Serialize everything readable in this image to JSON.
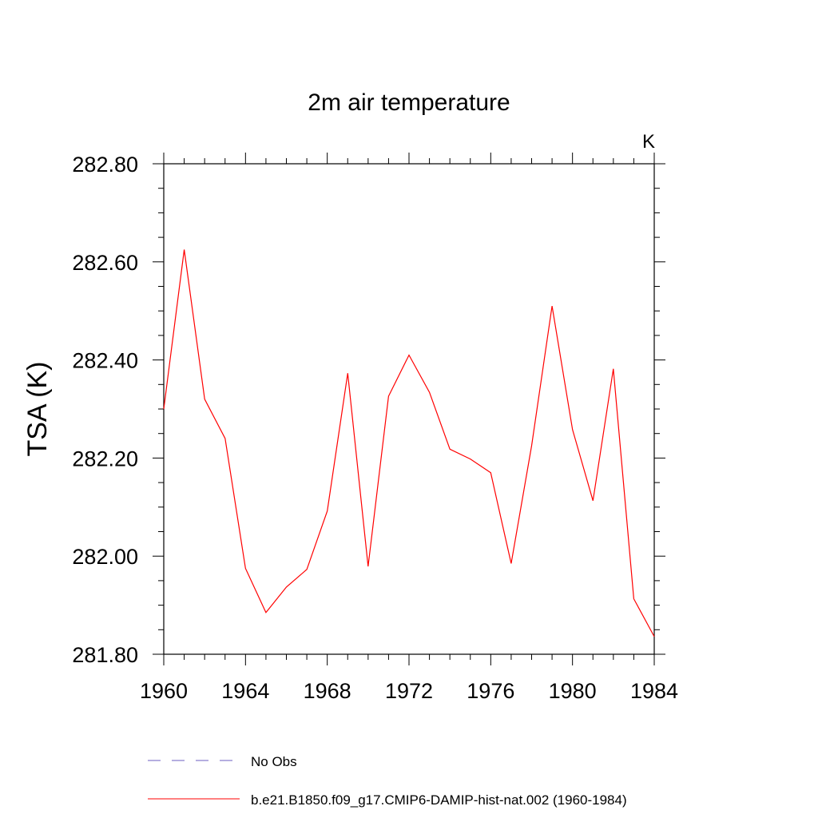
{
  "chart_data": {
    "type": "line",
    "title": "2m air temperature",
    "units_label": "K",
    "ylabel": "TSA  (K)",
    "xlabel": "",
    "xlim": [
      1960,
      1984
    ],
    "ylim": [
      281.8,
      282.8
    ],
    "x_ticks": [
      1960,
      1964,
      1968,
      1972,
      1976,
      1980,
      1984
    ],
    "x_tick_labels": [
      "1960",
      "1964",
      "1968",
      "1972",
      "1976",
      "1980",
      "1984"
    ],
    "y_ticks": [
      281.8,
      282.0,
      282.2,
      282.4,
      282.6,
      282.8
    ],
    "y_tick_labels": [
      "281.80",
      "282.00",
      "282.20",
      "282.40",
      "282.60",
      "282.80"
    ],
    "grid": false,
    "legend_position": "bottom",
    "series": [
      {
        "name": "No Obs",
        "color": "#6b5cc0",
        "style": "dashed",
        "x": [],
        "values": []
      },
      {
        "name": "b.e21.B1850.f09_g17.CMIP6-DAMIP-hist-nat.002 (1960-1984)",
        "color": "#ff0000",
        "style": "solid",
        "x": [
          1960,
          1961,
          1962,
          1963,
          1964,
          1965,
          1966,
          1967,
          1968,
          1969,
          1970,
          1971,
          1972,
          1973,
          1974,
          1975,
          1976,
          1977,
          1978,
          1979,
          1980,
          1981,
          1982,
          1983,
          1984
        ],
        "values": [
          282.3,
          282.625,
          282.32,
          282.24,
          281.975,
          281.885,
          281.937,
          281.973,
          282.092,
          282.373,
          281.979,
          282.326,
          282.41,
          282.334,
          282.218,
          282.198,
          282.17,
          281.985,
          282.225,
          282.51,
          282.258,
          282.113,
          282.382,
          281.913,
          281.836
        ]
      }
    ]
  }
}
